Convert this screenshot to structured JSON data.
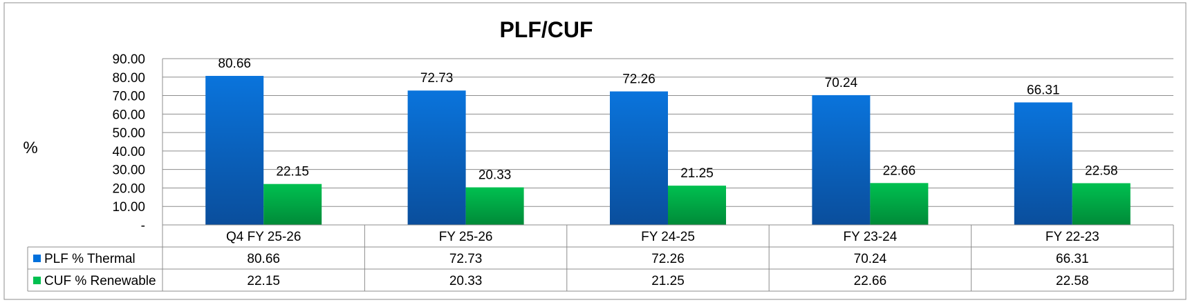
{
  "chart_data": {
    "type": "bar",
    "title": "PLF/CUF",
    "ylabel": "%",
    "xlabel": "",
    "categories": [
      "Q4 FY 25-26",
      "FY 25-26",
      "FY 24-25",
      "FY 23-24",
      "FY 22-23"
    ],
    "series": [
      {
        "name": "PLF  %  Thermal",
        "values": [
          80.66,
          72.73,
          72.26,
          70.24,
          66.31
        ],
        "color": "#0070DC"
      },
      {
        "name": "CUF %  Renewable",
        "values": [
          22.15,
          20.33,
          21.25,
          22.66,
          22.58
        ],
        "color": "#00C050"
      }
    ],
    "ylim": [
      0,
      90
    ],
    "yticks": [
      "-",
      "10.00",
      "20.00",
      "30.00",
      "40.00",
      "50.00",
      "60.00",
      "70.00",
      "80.00",
      "90.00"
    ],
    "grid": true,
    "data_labels": true,
    "legend": "data-table-below",
    "data_table": [
      [
        "80.66",
        "72.73",
        "72.26",
        "70.24",
        "66.31"
      ],
      [
        "22.15",
        "20.33",
        "21.25",
        "22.66",
        "22.58"
      ]
    ]
  }
}
